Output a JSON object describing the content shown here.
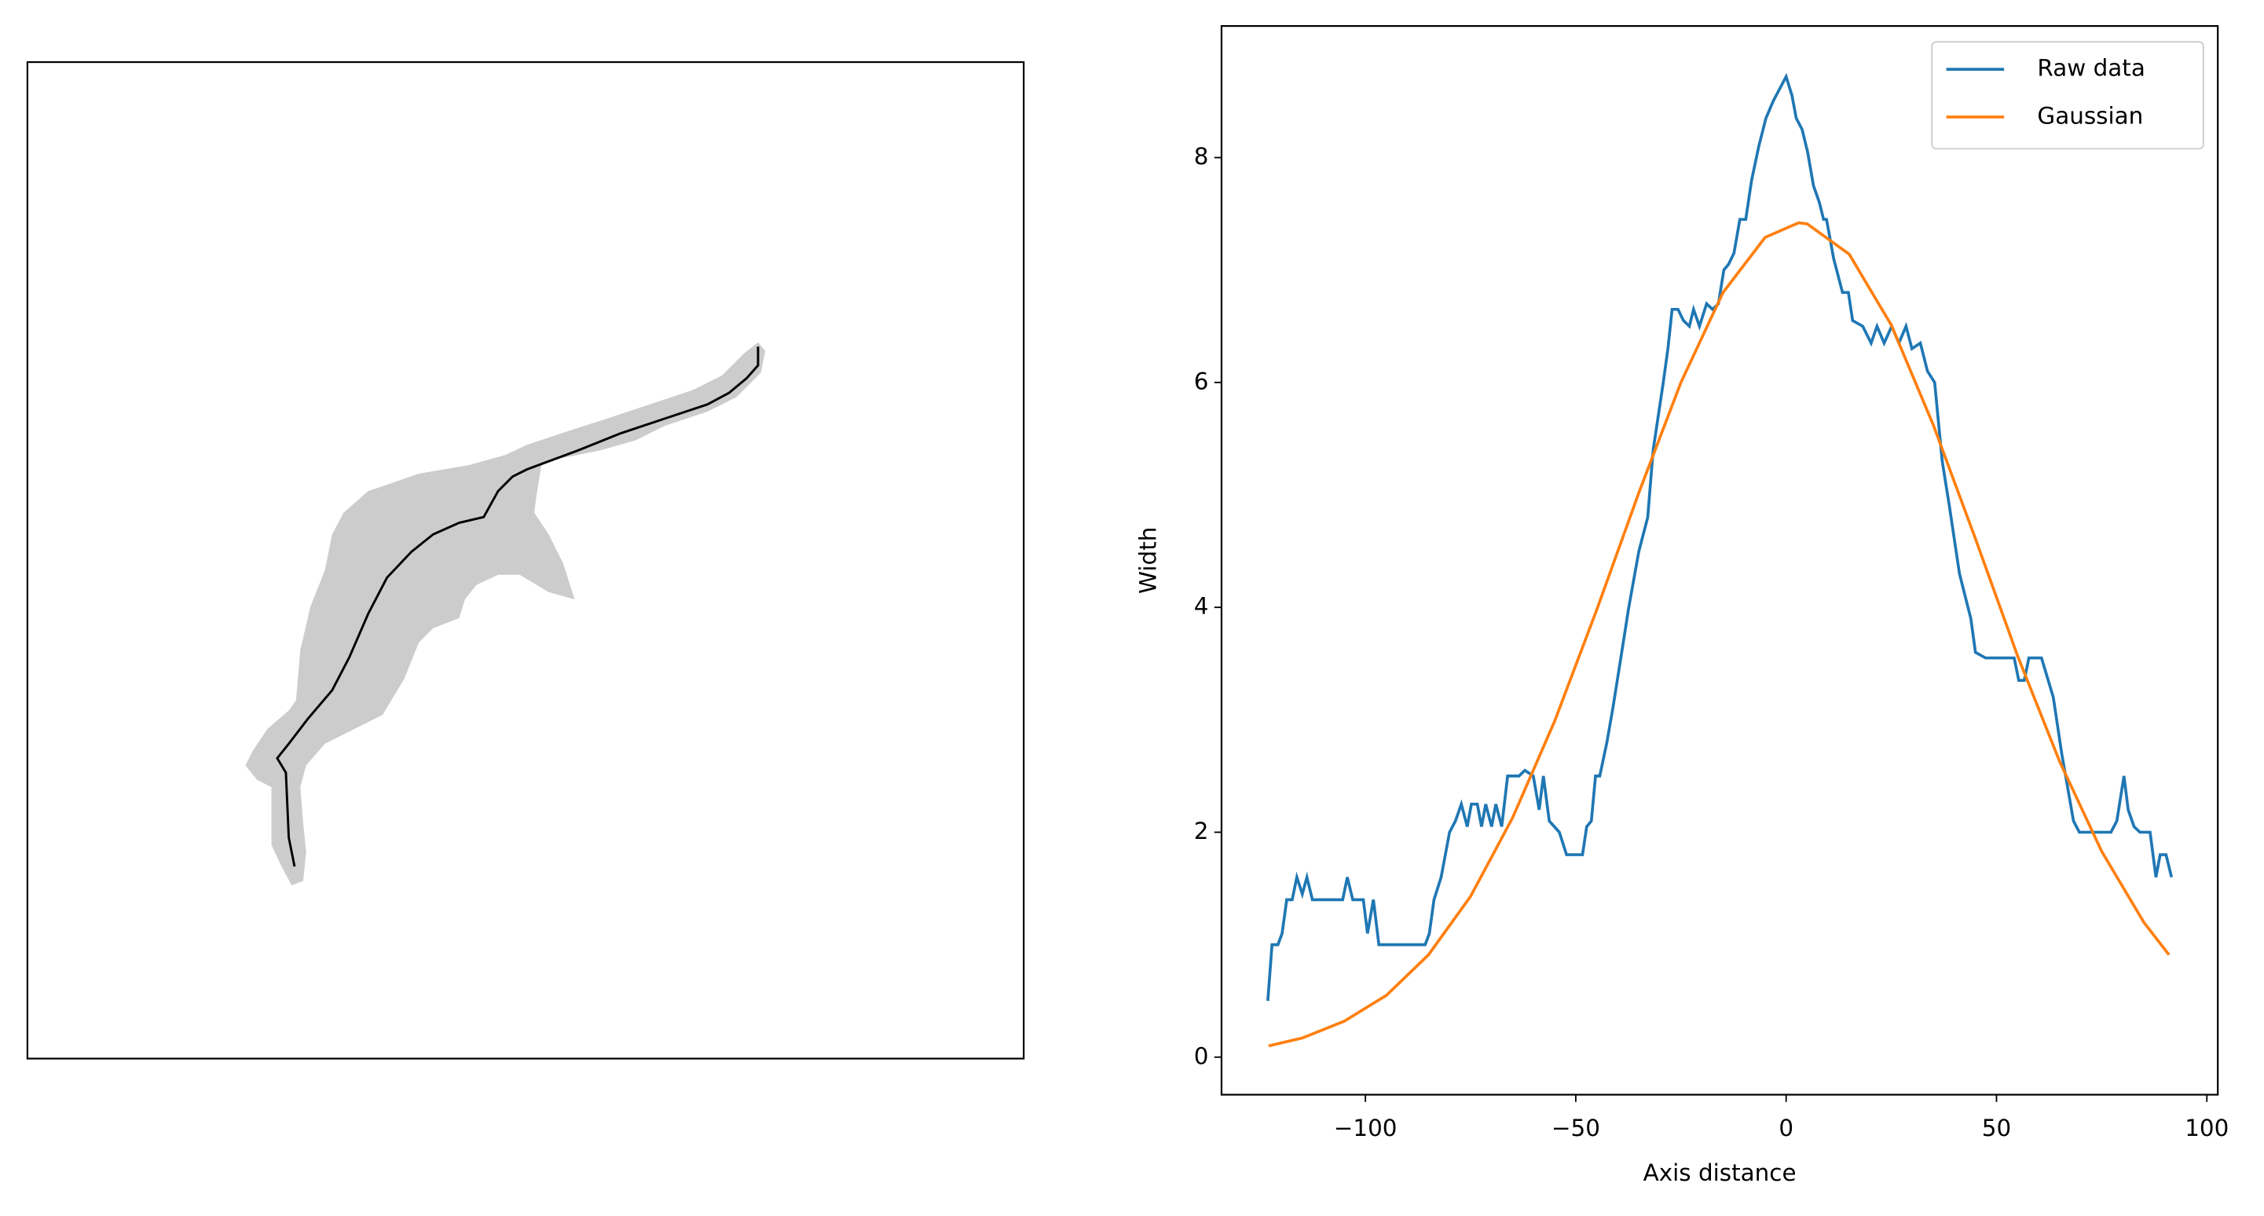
{
  "chart_data": {
    "type": "line",
    "xlabel": "Axis distance",
    "ylabel": "Width",
    "xlim": [
      -134.2,
      102.6
    ],
    "ylim": [
      -0.334,
      9.17
    ],
    "xticks": [
      {
        "value": -100,
        "label": "−100"
      },
      {
        "value": -50,
        "label": "−50"
      },
      0,
      50,
      100
    ],
    "yticks": [
      0,
      2,
      4,
      6,
      8
    ],
    "grid": false,
    "legend": "upper right",
    "series": [
      {
        "name": "Raw data",
        "color": "#1f77b4",
        "x": [
          -123.2,
          -122.2,
          -120.8,
          -119.8,
          -118.7,
          -117.4,
          -116.3,
          -115.0,
          -113.9,
          -112.6,
          -105.4,
          -104.3,
          -103.0,
          -100.5,
          -99.5,
          -98.1,
          -96.8,
          -85.8,
          -84.8,
          -83.7,
          -82.0,
          -80.0,
          -78.6,
          -77.2,
          -75.8,
          -74.8,
          -73.4,
          -72.4,
          -71.4,
          -70.0,
          -69.0,
          -67.6,
          -66.2,
          -63.5,
          -62.1,
          -60.1,
          -58.7,
          -57.7,
          -56.3,
          -53.9,
          -52.2,
          -48.4,
          -47.4,
          -46.3,
          -45.3,
          -44.3,
          -42.6,
          -41.2,
          -39.5,
          -37.4,
          -35.0,
          -32.9,
          -31.6,
          -29.2,
          -28.1,
          -27.1,
          -25.7,
          -24.4,
          -23.0,
          -22.0,
          -20.6,
          -18.9,
          -17.5,
          -16.1,
          -14.8,
          -13.7,
          -12.4,
          -11.0,
          -9.6,
          -8.2,
          -6.5,
          -4.8,
          -3.1,
          -1.7,
          0,
          1.4,
          2.4,
          3.8,
          5.1,
          6.5,
          7.9,
          8.9,
          9.6,
          11.3,
          13.4,
          14.8,
          15.8,
          18.2,
          20.2,
          21.6,
          23.3,
          25.1,
          26.8,
          28.5,
          29.9,
          31.9,
          33.6,
          35.3,
          37.1,
          38.8,
          41.2,
          43.9,
          45.0,
          47.4,
          54.2,
          55.3,
          56.6,
          57.7,
          60.7,
          63.5,
          65.5,
          66.9,
          68.3,
          69.7,
          77.2,
          78.6,
          80.3,
          81.3,
          82.7,
          84.1,
          86.5,
          87.9,
          88.9,
          90.3,
          91.6
        ],
        "values": [
          0.5,
          1.0,
          1.0,
          1.1,
          1.4,
          1.4,
          1.6,
          1.45,
          1.6,
          1.4,
          1.4,
          1.6,
          1.4,
          1.4,
          1.1,
          1.4,
          1.0,
          1.0,
          1.1,
          1.4,
          1.6,
          2.0,
          2.1,
          2.25,
          2.05,
          2.25,
          2.25,
          2.05,
          2.25,
          2.05,
          2.25,
          2.05,
          2.5,
          2.5,
          2.55,
          2.5,
          2.2,
          2.5,
          2.1,
          2.0,
          1.8,
          1.8,
          2.05,
          2.1,
          2.5,
          2.5,
          2.8,
          3.1,
          3.5,
          4.0,
          4.5,
          4.8,
          5.4,
          6.0,
          6.3,
          6.65,
          6.65,
          6.55,
          6.5,
          6.65,
          6.5,
          6.7,
          6.65,
          6.7,
          7.0,
          7.05,
          7.15,
          7.45,
          7.45,
          7.8,
          8.1,
          8.35,
          8.5,
          8.6,
          8.72,
          8.55,
          8.35,
          8.25,
          8.05,
          7.75,
          7.6,
          7.45,
          7.45,
          7.1,
          6.8,
          6.8,
          6.55,
          6.5,
          6.35,
          6.5,
          6.35,
          6.5,
          6.35,
          6.5,
          6.3,
          6.35,
          6.1,
          6.0,
          5.3,
          4.9,
          4.3,
          3.9,
          3.6,
          3.55,
          3.55,
          3.35,
          3.35,
          3.55,
          3.55,
          3.2,
          2.7,
          2.4,
          2.1,
          2.0,
          2.0,
          2.1,
          2.5,
          2.2,
          2.05,
          2.0,
          2.0,
          1.6,
          1.8,
          1.8,
          1.6
        ]
      },
      {
        "name": "Gaussian",
        "color": "#ff7f0e",
        "x": [
          -123,
          -115,
          -105,
          -95,
          -85,
          -75,
          -65,
          -55,
          -45,
          -35,
          -25,
          -15,
          -5,
          3,
          5,
          15,
          25,
          35,
          45,
          55,
          65,
          75,
          85,
          91
        ],
        "values": [
          0.1,
          0.17,
          0.32,
          0.55,
          0.91,
          1.43,
          2.13,
          2.99,
          3.98,
          5.02,
          6.0,
          6.8,
          7.29,
          7.42,
          7.41,
          7.14,
          6.51,
          5.62,
          4.61,
          3.57,
          2.63,
          1.83,
          1.2,
          0.91
        ]
      }
    ]
  }
}
